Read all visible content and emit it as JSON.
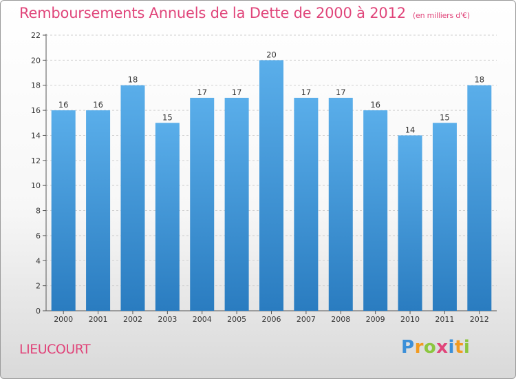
{
  "title": "Remboursements Annuels de la Dette de 2000 à 2012",
  "subtitle": "(en milliers d'€)",
  "place": "LIEUCOURT",
  "logo": {
    "text": "Proxiti",
    "letters": [
      {
        "ch": "P",
        "color": "#3b8fd8"
      },
      {
        "ch": "r",
        "color": "#f29a1f"
      },
      {
        "ch": "o",
        "color": "#8cc63f"
      },
      {
        "ch": "x",
        "color": "#e0457a"
      },
      {
        "ch": "i",
        "color": "#3b8fd8"
      },
      {
        "ch": "t",
        "color": "#f29a1f"
      },
      {
        "ch": "i",
        "color": "#8cc63f"
      }
    ]
  },
  "colors": {
    "bar_top": "#5aaeea",
    "bar_bottom": "#2a7cc0",
    "accent": "#e0457a"
  },
  "chart_data": {
    "type": "bar",
    "title": "Remboursements Annuels de la Dette de 2000 à 2012",
    "subtitle": "(en milliers d'€)",
    "categories": [
      "2000",
      "2001",
      "2002",
      "2003",
      "2004",
      "2005",
      "2006",
      "2007",
      "2008",
      "2009",
      "2010",
      "2011",
      "2012"
    ],
    "values": [
      16,
      16,
      18,
      15,
      17,
      17,
      20,
      17,
      17,
      16,
      14,
      15,
      18
    ],
    "ylim": [
      0,
      22
    ],
    "yticks": [
      0,
      2,
      4,
      6,
      8,
      10,
      12,
      14,
      16,
      18,
      20,
      22
    ],
    "grid": true,
    "xlabel": "",
    "ylabel": ""
  }
}
